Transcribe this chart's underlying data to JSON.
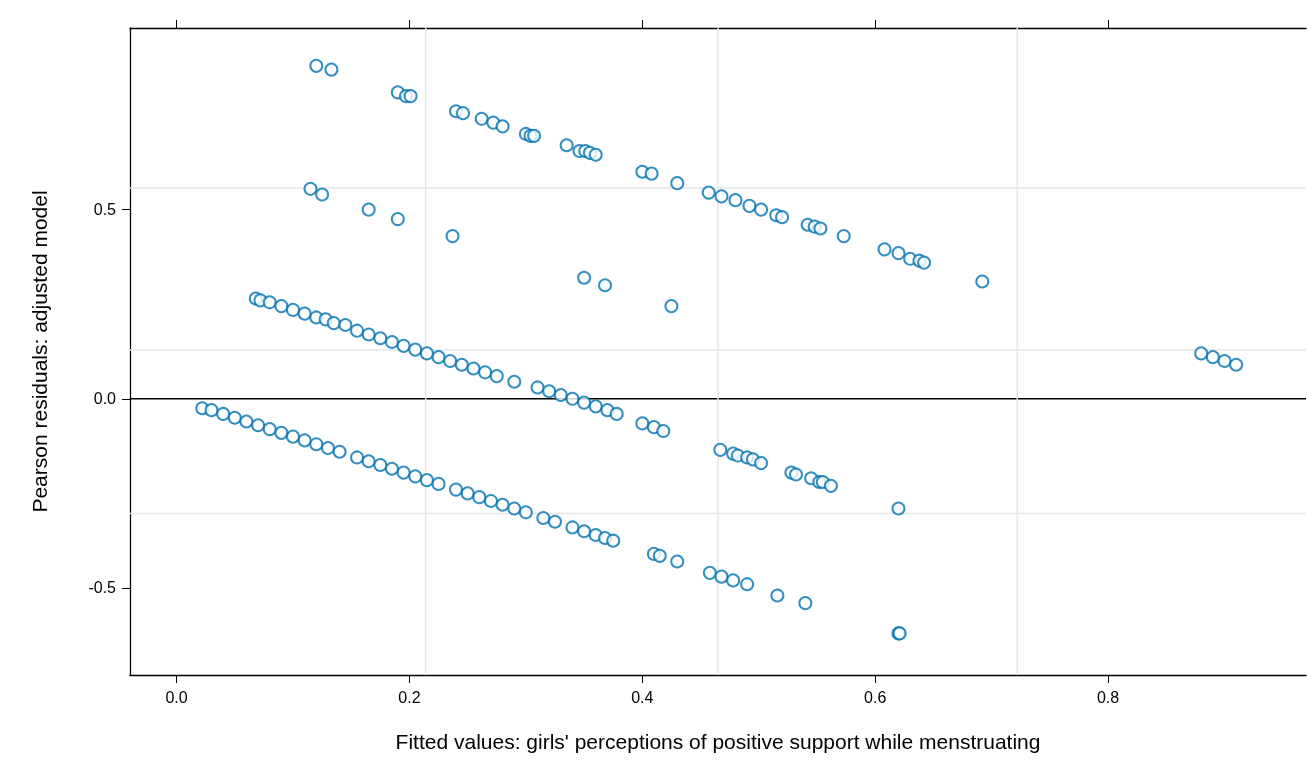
{
  "chart_data": {
    "type": "scatter",
    "xlabel": "Fitted values: girls' perceptions of positive support while menstruating",
    "ylabel": "Pearson residuals: adjusted model",
    "xlim": [
      -0.04,
      0.97
    ],
    "ylim": [
      -0.73,
      0.98
    ],
    "xticks": [
      {
        "value": 0,
        "label": "0.0"
      },
      0.2,
      0.4,
      0.6,
      0.8
    ],
    "yticks": [
      -0.5,
      {
        "value": 0,
        "label": "0.0"
      },
      0.5
    ],
    "grid": false,
    "marker": "circle",
    "ref_lines": [
      {
        "axis": "y",
        "value": 0,
        "color": "#000000"
      },
      {
        "axis": "x",
        "value": 0.214,
        "color": "#e6e6e6"
      },
      {
        "axis": "x",
        "value": 0.465,
        "color": "#e6e6e6"
      },
      {
        "axis": "x",
        "value": 0.722,
        "color": "#e6e6e6"
      },
      {
        "axis": "y",
        "value": 0.557,
        "color": "#e6e6e6"
      },
      {
        "axis": "y",
        "value": 0.129,
        "color": "#e6e6e6"
      },
      {
        "axis": "y",
        "value": -0.303,
        "color": "#e6e6e6"
      }
    ],
    "series": [
      {
        "color": "#0072b2",
        "x": [
          0.12,
          0.133,
          0.19,
          0.197,
          0.201,
          0.24,
          0.246,
          0.262,
          0.272,
          0.28,
          0.3,
          0.304,
          0.307,
          0.335,
          0.346,
          0.351,
          0.355,
          0.36,
          0.4,
          0.408,
          0.43,
          0.457,
          0.468,
          0.48,
          0.492,
          0.502,
          0.515,
          0.52,
          0.542,
          0.548,
          0.553,
          0.573,
          0.608,
          0.62,
          0.63,
          0.638,
          0.642,
          0.692,
          0.115,
          0.125,
          0.165,
          0.19,
          0.237,
          0.35,
          0.368,
          0.425,
          0.88,
          0.89,
          0.9,
          0.91,
          0.068,
          0.072,
          0.08,
          0.09,
          0.1,
          0.11,
          0.12,
          0.128,
          0.135,
          0.145,
          0.155,
          0.165,
          0.175,
          0.185,
          0.195,
          0.205,
          0.215,
          0.225,
          0.235,
          0.245,
          0.255,
          0.265,
          0.275,
          0.29,
          0.31,
          0.32,
          0.33,
          0.34,
          0.35,
          0.36,
          0.37,
          0.378,
          0.4,
          0.41,
          0.418,
          0.467,
          0.478,
          0.482,
          0.49,
          0.495,
          0.502,
          0.528,
          0.532,
          0.545,
          0.552,
          0.555,
          0.562,
          0.62,
          0.022,
          0.03,
          0.04,
          0.05,
          0.06,
          0.07,
          0.08,
          0.09,
          0.1,
          0.11,
          0.12,
          0.13,
          0.14,
          0.155,
          0.165,
          0.175,
          0.185,
          0.195,
          0.205,
          0.215,
          0.225,
          0.24,
          0.25,
          0.26,
          0.27,
          0.28,
          0.29,
          0.3,
          0.315,
          0.325,
          0.34,
          0.35,
          0.36,
          0.368,
          0.375,
          0.41,
          0.415,
          0.43,
          0.458,
          0.468,
          0.478,
          0.49,
          0.516,
          0.54,
          0.62,
          0.621
        ],
        "values": [
          0.88,
          0.87,
          0.81,
          0.8,
          0.8,
          0.76,
          0.755,
          0.74,
          0.73,
          0.72,
          0.7,
          0.695,
          0.695,
          0.67,
          0.655,
          0.655,
          0.65,
          0.645,
          0.6,
          0.595,
          0.57,
          0.545,
          0.535,
          0.525,
          0.51,
          0.5,
          0.485,
          0.48,
          0.46,
          0.455,
          0.45,
          0.43,
          0.395,
          0.385,
          0.37,
          0.365,
          0.36,
          0.31,
          0.555,
          0.54,
          0.5,
          0.475,
          0.43,
          0.32,
          0.3,
          0.245,
          0.12,
          0.11,
          0.1,
          0.09,
          0.265,
          0.26,
          0.255,
          0.245,
          0.235,
          0.225,
          0.215,
          0.21,
          0.2,
          0.195,
          0.18,
          0.17,
          0.16,
          0.15,
          0.14,
          0.13,
          0.12,
          0.11,
          0.1,
          0.09,
          0.08,
          0.07,
          0.06,
          0.045,
          0.03,
          0.02,
          0.01,
          0.0,
          -0.01,
          -0.02,
          -0.03,
          -0.04,
          -0.065,
          -0.075,
          -0.085,
          -0.135,
          -0.145,
          -0.15,
          -0.155,
          -0.16,
          -0.17,
          -0.195,
          -0.2,
          -0.21,
          -0.22,
          -0.22,
          -0.23,
          -0.29,
          -0.025,
          -0.03,
          -0.04,
          -0.05,
          -0.06,
          -0.07,
          -0.08,
          -0.09,
          -0.1,
          -0.11,
          -0.12,
          -0.13,
          -0.14,
          -0.155,
          -0.165,
          -0.175,
          -0.185,
          -0.195,
          -0.205,
          -0.215,
          -0.225,
          -0.24,
          -0.25,
          -0.26,
          -0.27,
          -0.28,
          -0.29,
          -0.3,
          -0.315,
          -0.325,
          -0.34,
          -0.35,
          -0.36,
          -0.368,
          -0.375,
          -0.41,
          -0.415,
          -0.43,
          -0.46,
          -0.47,
          -0.48,
          -0.49,
          -0.52,
          -0.54,
          -0.62,
          -0.62
        ]
      }
    ]
  }
}
